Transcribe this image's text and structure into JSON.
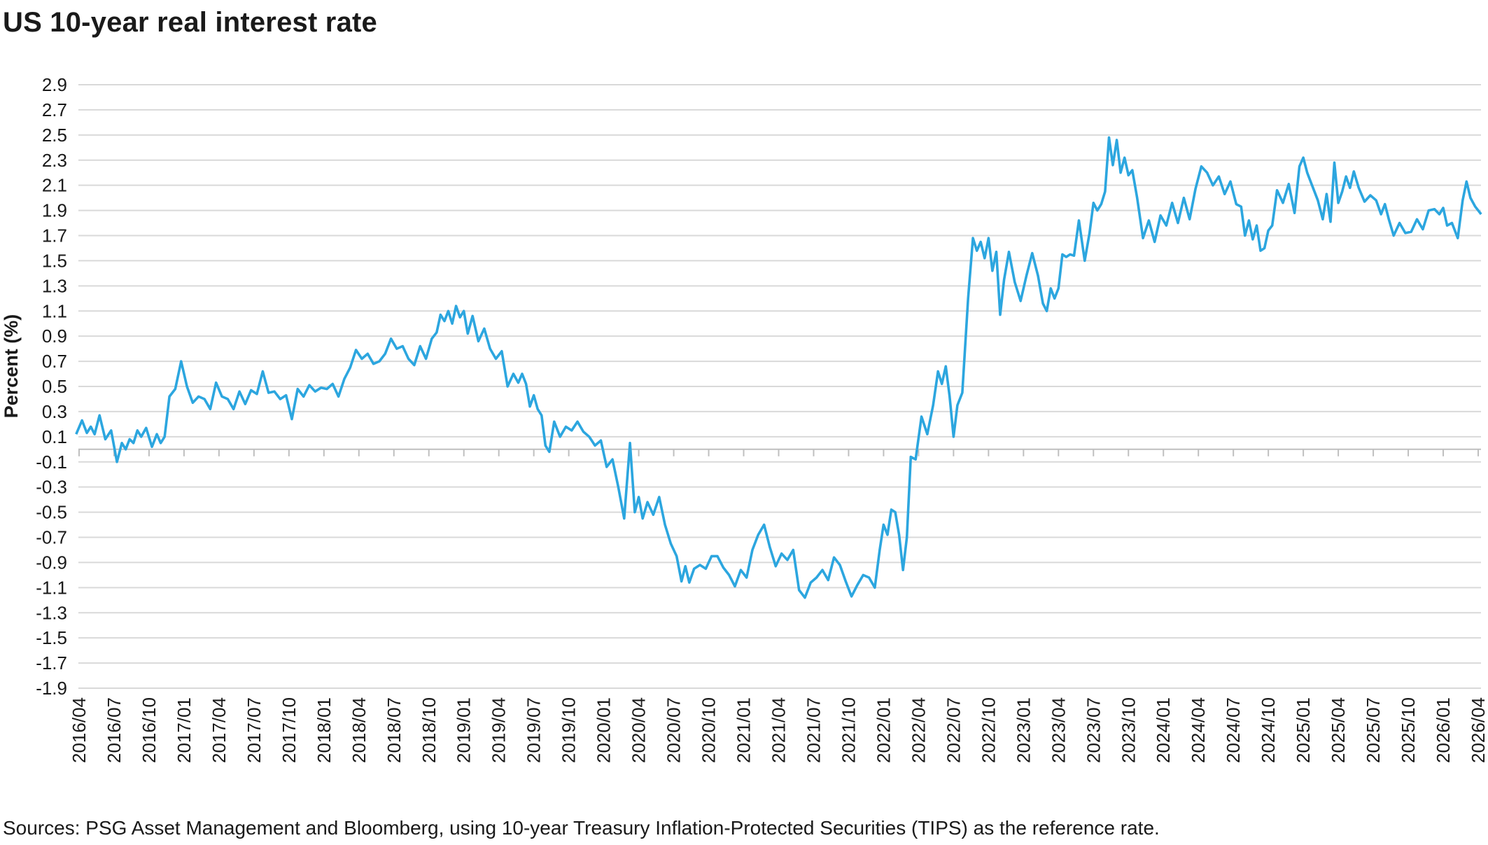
{
  "chart_data": {
    "type": "line",
    "title": "US 10-year real interest rate",
    "ylabel": "Percent (%)",
    "xlabel": "",
    "ylim": [
      -1.9,
      2.9
    ],
    "yticks": [
      "2.9",
      "2.7",
      "2.5",
      "2.3",
      "2.1",
      "1.9",
      "1.7",
      "1.5",
      "1.3",
      "1.1",
      "0.9",
      "0.7",
      "0.5",
      "0.3",
      "0.1",
      "-0.1",
      "-0.3",
      "-0.5",
      "-0.7",
      "-0.9",
      "-1.1",
      "-1.3",
      "-1.5",
      "-1.7",
      "-1.9"
    ],
    "xticks": [
      "2016/04",
      "2016/07",
      "2016/10",
      "2017/01",
      "2017/04",
      "2017/07",
      "2017/10",
      "2018/01",
      "2018/04",
      "2018/07",
      "2018/10",
      "2019/01",
      "2019/04",
      "2019/07",
      "2019/10",
      "2020/01",
      "2020/04",
      "2020/07",
      "2020/10",
      "2021/01",
      "2021/04",
      "2021/07",
      "2021/10",
      "2022/01",
      "2022/04",
      "2022/07",
      "2022/10",
      "2023/01",
      "2023/04",
      "2023/07",
      "2023/10",
      "2024/01",
      "2024/04",
      "2024/07",
      "2024/10",
      "2025/01",
      "2025/04",
      "2025/07",
      "2025/10",
      "2026/01",
      "2026/04"
    ],
    "grid": true,
    "legend": "none",
    "series_color": "#2ca6df",
    "series": [
      {
        "points": [
          [
            "2016/04",
            0.12
          ],
          [
            "2016/04",
            0.23
          ],
          [
            "2016/05",
            0.13
          ],
          [
            "2016/05",
            0.18
          ],
          [
            "2016/05",
            0.12
          ],
          [
            "2016/06",
            0.27
          ],
          [
            "2016/06",
            0.08
          ],
          [
            "2016/07",
            0.15
          ],
          [
            "2016/07",
            -0.1
          ],
          [
            "2016/08",
            0.05
          ],
          [
            "2016/08",
            0.0
          ],
          [
            "2016/08",
            0.08
          ],
          [
            "2016/09",
            0.05
          ],
          [
            "2016/09",
            0.15
          ],
          [
            "2016/09",
            0.1
          ],
          [
            "2016/10",
            0.17
          ],
          [
            "2016/10",
            0.02
          ],
          [
            "2016/11",
            0.12
          ],
          [
            "2016/11",
            0.05
          ],
          [
            "2016/11",
            0.1
          ],
          [
            "2016/12",
            0.42
          ],
          [
            "2016/12",
            0.48
          ],
          [
            "2017/01",
            0.7
          ],
          [
            "2017/01",
            0.5
          ],
          [
            "2017/02",
            0.37
          ],
          [
            "2017/02",
            0.42
          ],
          [
            "2017/03",
            0.4
          ],
          [
            "2017/03",
            0.32
          ],
          [
            "2017/04",
            0.53
          ],
          [
            "2017/04",
            0.42
          ],
          [
            "2017/05",
            0.4
          ],
          [
            "2017/05",
            0.32
          ],
          [
            "2017/06",
            0.46
          ],
          [
            "2017/06",
            0.36
          ],
          [
            "2017/07",
            0.47
          ],
          [
            "2017/07",
            0.44
          ],
          [
            "2017/08",
            0.62
          ],
          [
            "2017/08",
            0.45
          ],
          [
            "2017/09",
            0.46
          ],
          [
            "2017/09",
            0.4
          ],
          [
            "2017/10",
            0.43
          ],
          [
            "2017/10",
            0.24
          ],
          [
            "2017/11",
            0.48
          ],
          [
            "2017/11",
            0.42
          ],
          [
            "2017/12",
            0.51
          ],
          [
            "2017/12",
            0.46
          ],
          [
            "2018/01",
            0.49
          ],
          [
            "2018/01",
            0.48
          ],
          [
            "2018/02",
            0.52
          ],
          [
            "2018/02",
            0.42
          ],
          [
            "2018/03",
            0.56
          ],
          [
            "2018/03",
            0.65
          ],
          [
            "2018/04",
            0.79
          ],
          [
            "2018/04",
            0.72
          ],
          [
            "2018/05",
            0.76
          ],
          [
            "2018/05",
            0.68
          ],
          [
            "2018/06",
            0.7
          ],
          [
            "2018/06",
            0.76
          ],
          [
            "2018/07",
            0.88
          ],
          [
            "2018/07",
            0.8
          ],
          [
            "2018/08",
            0.82
          ],
          [
            "2018/08",
            0.72
          ],
          [
            "2018/09",
            0.67
          ],
          [
            "2018/09",
            0.82
          ],
          [
            "2018/10",
            0.72
          ],
          [
            "2018/10",
            0.88
          ],
          [
            "2018/11",
            0.93
          ],
          [
            "2018/11",
            1.07
          ],
          [
            "2018/11",
            1.02
          ],
          [
            "2018/12",
            1.1
          ],
          [
            "2018/12",
            1.0
          ],
          [
            "2018/12",
            1.14
          ],
          [
            "2019/01",
            1.05
          ],
          [
            "2019/01",
            1.1
          ],
          [
            "2019/01",
            0.92
          ],
          [
            "2019/02",
            1.06
          ],
          [
            "2019/02",
            0.86
          ],
          [
            "2019/03",
            0.96
          ],
          [
            "2019/03",
            0.8
          ],
          [
            "2019/04",
            0.72
          ],
          [
            "2019/04",
            0.78
          ],
          [
            "2019/05",
            0.5
          ],
          [
            "2019/05",
            0.6
          ],
          [
            "2019/06",
            0.53
          ],
          [
            "2019/06",
            0.6
          ],
          [
            "2019/06",
            0.52
          ],
          [
            "2019/07",
            0.34
          ],
          [
            "2019/07",
            0.43
          ],
          [
            "2019/07",
            0.32
          ],
          [
            "2019/08",
            0.27
          ],
          [
            "2019/08",
            0.03
          ],
          [
            "2019/08",
            -0.02
          ],
          [
            "2019/09",
            0.22
          ],
          [
            "2019/09",
            0.1
          ],
          [
            "2019/10",
            0.18
          ],
          [
            "2019/10",
            0.15
          ],
          [
            "2019/11",
            0.22
          ],
          [
            "2019/11",
            0.14
          ],
          [
            "2019/12",
            0.1
          ],
          [
            "2019/12",
            0.03
          ],
          [
            "2020/01",
            0.07
          ],
          [
            "2020/01",
            -0.14
          ],
          [
            "2020/02",
            -0.08
          ],
          [
            "2020/02",
            -0.3
          ],
          [
            "2020/03",
            -0.55
          ],
          [
            "2020/03",
            0.05
          ],
          [
            "2020/04",
            -0.5
          ],
          [
            "2020/04",
            -0.38
          ],
          [
            "2020/04",
            -0.55
          ],
          [
            "2020/05",
            -0.42
          ],
          [
            "2020/05",
            -0.52
          ],
          [
            "2020/06",
            -0.38
          ],
          [
            "2020/06",
            -0.6
          ],
          [
            "2020/07",
            -0.75
          ],
          [
            "2020/07",
            -0.85
          ],
          [
            "2020/08",
            -1.05
          ],
          [
            "2020/08",
            -0.93
          ],
          [
            "2020/08",
            -1.06
          ],
          [
            "2020/09",
            -0.95
          ],
          [
            "2020/09",
            -0.92
          ],
          [
            "2020/10",
            -0.95
          ],
          [
            "2020/10",
            -0.85
          ],
          [
            "2020/11",
            -0.85
          ],
          [
            "2020/11",
            -0.94
          ],
          [
            "2020/12",
            -1.0
          ],
          [
            "2020/12",
            -1.09
          ],
          [
            "2021/01",
            -0.96
          ],
          [
            "2021/01",
            -1.02
          ],
          [
            "2021/02",
            -0.8
          ],
          [
            "2021/02",
            -0.68
          ],
          [
            "2021/03",
            -0.6
          ],
          [
            "2021/03",
            -0.78
          ],
          [
            "2021/04",
            -0.93
          ],
          [
            "2021/04",
            -0.83
          ],
          [
            "2021/05",
            -0.88
          ],
          [
            "2021/05",
            -0.8
          ],
          [
            "2021/06",
            -1.12
          ],
          [
            "2021/06",
            -1.18
          ],
          [
            "2021/07",
            -1.06
          ],
          [
            "2021/07",
            -1.02
          ],
          [
            "2021/08",
            -0.96
          ],
          [
            "2021/08",
            -1.04
          ],
          [
            "2021/09",
            -0.86
          ],
          [
            "2021/09",
            -0.92
          ],
          [
            "2021/10",
            -1.05
          ],
          [
            "2021/10",
            -1.17
          ],
          [
            "2021/11",
            -1.08
          ],
          [
            "2021/11",
            -1.0
          ],
          [
            "2021/12",
            -1.02
          ],
          [
            "2021/12",
            -1.1
          ],
          [
            "2022/01",
            -0.8
          ],
          [
            "2022/01",
            -0.6
          ],
          [
            "2022/01",
            -0.68
          ],
          [
            "2022/02",
            -0.48
          ],
          [
            "2022/02",
            -0.5
          ],
          [
            "2022/02",
            -0.68
          ],
          [
            "2022/03",
            -0.96
          ],
          [
            "2022/03",
            -0.7
          ],
          [
            "2022/03",
            -0.06
          ],
          [
            "2022/04",
            -0.08
          ],
          [
            "2022/04",
            0.26
          ],
          [
            "2022/05",
            0.12
          ],
          [
            "2022/05",
            0.35
          ],
          [
            "2022/06",
            0.62
          ],
          [
            "2022/06",
            0.52
          ],
          [
            "2022/06",
            0.66
          ],
          [
            "2022/07",
            0.42
          ],
          [
            "2022/07",
            0.1
          ],
          [
            "2022/07",
            0.35
          ],
          [
            "2022/08",
            0.45
          ],
          [
            "2022/08",
            1.2
          ],
          [
            "2022/09",
            1.68
          ],
          [
            "2022/09",
            1.58
          ],
          [
            "2022/09",
            1.65
          ],
          [
            "2022/10",
            1.52
          ],
          [
            "2022/10",
            1.68
          ],
          [
            "2022/10",
            1.42
          ],
          [
            "2022/11",
            1.57
          ],
          [
            "2022/11",
            1.07
          ],
          [
            "2022/11",
            1.35
          ],
          [
            "2022/12",
            1.57
          ],
          [
            "2022/12",
            1.33
          ],
          [
            "2023/01",
            1.18
          ],
          [
            "2023/01",
            1.38
          ],
          [
            "2023/02",
            1.56
          ],
          [
            "2023/02",
            1.38
          ],
          [
            "2023/03",
            1.16
          ],
          [
            "2023/03",
            1.1
          ],
          [
            "2023/03",
            1.28
          ],
          [
            "2023/04",
            1.2
          ],
          [
            "2023/04",
            1.28
          ],
          [
            "2023/04",
            1.55
          ],
          [
            "2023/05",
            1.53
          ],
          [
            "2023/05",
            1.55
          ],
          [
            "2023/05",
            1.54
          ],
          [
            "2023/06",
            1.82
          ],
          [
            "2023/06",
            1.5
          ],
          [
            "2023/07",
            1.72
          ],
          [
            "2023/07",
            1.96
          ],
          [
            "2023/07",
            1.9
          ],
          [
            "2023/08",
            1.95
          ],
          [
            "2023/08",
            2.05
          ],
          [
            "2023/08",
            2.48
          ],
          [
            "2023/09",
            2.26
          ],
          [
            "2023/09",
            2.46
          ],
          [
            "2023/09",
            2.2
          ],
          [
            "2023/10",
            2.32
          ],
          [
            "2023/10",
            2.18
          ],
          [
            "2023/10",
            2.22
          ],
          [
            "2023/11",
            2.0
          ],
          [
            "2023/11",
            1.68
          ],
          [
            "2023/12",
            1.82
          ],
          [
            "2023/12",
            1.65
          ],
          [
            "2024/01",
            1.86
          ],
          [
            "2024/01",
            1.78
          ],
          [
            "2024/02",
            1.96
          ],
          [
            "2024/02",
            1.8
          ],
          [
            "2024/03",
            2.0
          ],
          [
            "2024/03",
            1.83
          ],
          [
            "2024/04",
            2.07
          ],
          [
            "2024/04",
            2.25
          ],
          [
            "2024/05",
            2.2
          ],
          [
            "2024/05",
            2.1
          ],
          [
            "2024/06",
            2.17
          ],
          [
            "2024/06",
            2.03
          ],
          [
            "2024/07",
            2.13
          ],
          [
            "2024/07",
            1.95
          ],
          [
            "2024/08",
            1.93
          ],
          [
            "2024/08",
            1.7
          ],
          [
            "2024/08",
            1.82
          ],
          [
            "2024/09",
            1.67
          ],
          [
            "2024/09",
            1.78
          ],
          [
            "2024/09",
            1.58
          ],
          [
            "2024/10",
            1.6
          ],
          [
            "2024/10",
            1.74
          ],
          [
            "2024/10",
            1.78
          ],
          [
            "2024/11",
            2.06
          ],
          [
            "2024/11",
            1.96
          ],
          [
            "2024/12",
            2.11
          ],
          [
            "2024/12",
            1.88
          ],
          [
            "2025/01",
            2.25
          ],
          [
            "2025/01",
            2.32
          ],
          [
            "2025/01",
            2.2
          ],
          [
            "2025/02",
            2.1
          ],
          [
            "2025/02",
            1.98
          ],
          [
            "2025/03",
            1.83
          ],
          [
            "2025/03",
            2.03
          ],
          [
            "2025/03",
            1.81
          ],
          [
            "2025/04",
            2.28
          ],
          [
            "2025/04",
            1.96
          ],
          [
            "2025/04",
            2.05
          ],
          [
            "2025/05",
            2.17
          ],
          [
            "2025/05",
            2.08
          ],
          [
            "2025/05",
            2.21
          ],
          [
            "2025/06",
            2.08
          ],
          [
            "2025/06",
            1.97
          ],
          [
            "2025/07",
            2.02
          ],
          [
            "2025/07",
            1.98
          ],
          [
            "2025/08",
            1.87
          ],
          [
            "2025/08",
            1.95
          ],
          [
            "2025/08",
            1.83
          ],
          [
            "2025/09",
            1.7
          ],
          [
            "2025/09",
            1.8
          ],
          [
            "2025/10",
            1.72
          ],
          [
            "2025/10",
            1.73
          ],
          [
            "2025/11",
            1.83
          ],
          [
            "2025/11",
            1.75
          ],
          [
            "2025/12",
            1.9
          ],
          [
            "2025/12",
            1.91
          ],
          [
            "2026/01",
            1.87
          ],
          [
            "2026/01",
            1.92
          ],
          [
            "2026/01",
            1.78
          ],
          [
            "2026/02",
            1.8
          ],
          [
            "2026/02",
            1.68
          ],
          [
            "2026/03",
            1.98
          ],
          [
            "2026/03",
            2.13
          ],
          [
            "2026/03",
            2.0
          ],
          [
            "2026/04",
            1.93
          ],
          [
            "2026/04",
            1.87
          ]
        ]
      }
    ]
  },
  "footer": {
    "source": "Sources: PSG Asset Management and Bloomberg, using 10-year Treasury Inflation-Protected Securities (TIPS) as the reference rate."
  }
}
